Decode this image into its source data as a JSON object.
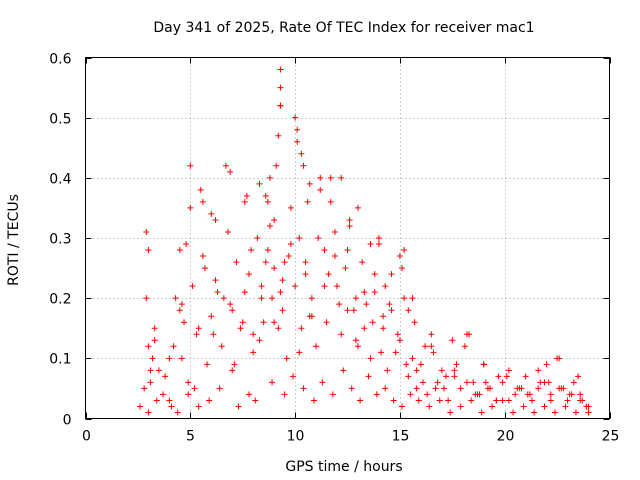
{
  "chart_data": {
    "type": "scatter",
    "title": "Day 341 of 2025, Rate Of TEC Index for receiver mac1",
    "xlabel": "GPS time / hours",
    "ylabel": "ROTI / TECUs",
    "xlim": [
      0,
      25
    ],
    "ylim": [
      0,
      0.6
    ],
    "xticks": [
      0,
      5,
      10,
      15,
      20,
      25
    ],
    "yticks": [
      0,
      0.1,
      0.2,
      0.3,
      0.4,
      0.5,
      0.6
    ],
    "ytick_labels": [
      "0",
      "0.1",
      "0.2",
      "0.3",
      "0.4",
      "0.5",
      "0.6"
    ],
    "grid": true,
    "marker": "+",
    "color": "#ff0000",
    "series": [
      {
        "x": [
          2.6,
          2.8,
          3.0,
          3.0,
          3.1,
          3.3,
          3.5,
          3.7,
          4.0,
          4.3,
          4.5,
          4.6,
          4.8,
          4.9,
          5.0,
          5.1,
          5.3,
          5.5,
          5.6,
          5.8,
          6.0,
          6.2,
          6.3,
          6.5,
          6.7,
          6.8,
          6.9,
          7.0,
          7.2,
          7.4,
          7.6,
          7.8,
          8.0,
          8.2,
          8.4,
          8.5,
          8.6,
          8.7,
          8.8,
          8.9,
          9.0,
          9.0,
          9.1,
          9.2,
          9.3,
          9.4,
          9.5,
          9.6,
          9.8,
          10.0,
          10.1,
          10.2,
          10.3,
          10.4,
          10.5,
          10.6,
          10.8,
          11.0,
          11.2,
          11.4,
          11.5,
          11.7,
          11.9,
          12.0,
          12.2,
          12.4,
          12.6,
          12.8,
          13.0,
          13.2,
          13.4,
          13.6,
          13.8,
          14.0,
          14.2,
          14.4,
          14.6,
          14.8,
          15.0,
          15.2,
          15.4,
          15.6,
          15.8,
          16.0,
          16.3,
          16.5,
          16.8,
          17.0,
          17.3,
          17.6,
          17.9,
          18.2,
          18.5,
          18.8,
          19.0,
          19.3,
          19.6,
          19.9,
          20.2,
          20.5,
          20.8,
          21.0,
          21.3,
          21.6,
          21.9,
          22.2,
          22.5,
          22.8,
          23.0,
          23.3,
          23.6,
          23.9,
          24.0,
          2.9,
          3.2,
          3.8,
          4.2,
          4.7,
          5.2,
          5.7,
          6.1,
          6.6,
          7.1,
          7.5,
          7.9,
          8.3,
          8.8,
          9.3,
          9.7,
          10.2,
          10.7,
          11.1,
          11.6,
          12.1,
          12.5,
          12.9,
          13.3,
          13.7,
          14.1,
          14.5,
          14.9,
          15.3,
          15.7,
          16.1,
          16.6,
          17.1,
          17.6,
          18.1,
          18.6,
          19.1,
          19.6,
          20.1,
          20.6,
          21.1,
          21.6,
          22.1,
          22.6,
          23.1,
          23.6,
          2.9,
          4.5,
          5.0,
          5.6,
          6.0,
          6.9,
          7.7,
          8.3,
          8.7,
          9.2,
          9.3,
          9.3,
          9.3,
          10.0,
          10.1,
          10.3,
          10.7,
          11.2,
          11.7,
          12.2,
          12.6,
          13.0,
          13.6,
          14.0,
          14.3,
          15.1,
          15.2,
          15.6,
          16.5,
          17.5,
          18.3,
          19.0,
          22.0,
          22.6,
          23.5,
          3.0,
          3.4,
          4.1,
          4.4,
          4.9,
          5.4,
          5.9,
          6.4,
          7.3,
          7.8,
          8.1,
          8.9,
          9.5,
          9.9,
          10.4,
          10.9,
          11.3,
          11.8,
          12.3,
          12.7,
          13.1,
          13.5,
          13.9,
          14.3,
          14.7,
          15.1,
          15.5,
          15.9,
          16.4,
          16.9,
          17.4,
          17.9,
          18.4,
          18.9,
          19.4,
          19.9,
          20.4,
          20.9,
          21.4,
          21.9,
          22.4,
          22.9,
          23.4,
          23.9,
          3.1,
          3.3,
          4.0,
          4.6,
          5.4,
          6.2,
          7.0,
          7.6,
          8.0,
          8.4,
          8.6,
          9.0,
          9.4,
          9.8,
          10.5,
          10.8,
          11.4,
          11.9,
          12.5,
          12.9,
          13.3,
          13.8,
          14.2,
          14.6,
          15.0,
          15.4,
          15.8,
          16.2,
          16.7,
          17.2,
          17.7,
          18.2,
          18.7,
          19.2,
          19.7,
          20.2,
          20.7,
          21.2,
          21.7,
          22.2,
          22.7,
          23.2,
          23.7,
          24.0
        ],
        "y": [
          0.02,
          0.05,
          0.28,
          0.12,
          0.06,
          0.15,
          0.08,
          0.04,
          0.03,
          0.2,
          0.18,
          0.1,
          0.29,
          0.06,
          0.35,
          0.22,
          0.14,
          0.38,
          0.27,
          0.09,
          0.17,
          0.33,
          0.21,
          0.12,
          0.42,
          0.31,
          0.19,
          0.08,
          0.26,
          0.15,
          0.36,
          0.24,
          0.11,
          0.3,
          0.22,
          0.16,
          0.37,
          0.28,
          0.4,
          0.2,
          0.33,
          0.25,
          0.42,
          0.15,
          0.52,
          0.18,
          0.26,
          0.1,
          0.35,
          0.22,
          0.48,
          0.3,
          0.15,
          0.42,
          0.26,
          0.36,
          0.2,
          0.12,
          0.38,
          0.28,
          0.16,
          0.4,
          0.31,
          0.22,
          0.14,
          0.25,
          0.33,
          0.18,
          0.12,
          0.26,
          0.19,
          0.1,
          0.24,
          0.3,
          0.15,
          0.08,
          0.18,
          0.11,
          0.27,
          0.2,
          0.07,
          0.1,
          0.05,
          0.09,
          0.04,
          0.12,
          0.06,
          0.08,
          0.03,
          0.07,
          0.05,
          0.14,
          0.06,
          0.04,
          0.09,
          0.05,
          0.03,
          0.06,
          0.08,
          0.04,
          0.05,
          0.07,
          0.03,
          0.05,
          0.06,
          0.04,
          0.1,
          0.05,
          0.03,
          0.06,
          0.04,
          0.02,
          0.01,
          0.2,
          0.1,
          0.07,
          0.12,
          0.16,
          0.05,
          0.25,
          0.14,
          0.2,
          0.09,
          0.16,
          0.28,
          0.13,
          0.32,
          0.21,
          0.27,
          0.11,
          0.17,
          0.3,
          0.24,
          0.19,
          0.28,
          0.13,
          0.21,
          0.16,
          0.11,
          0.19,
          0.14,
          0.09,
          0.16,
          0.06,
          0.11,
          0.05,
          0.08,
          0.12,
          0.04,
          0.06,
          0.03,
          0.07,
          0.05,
          0.04,
          0.08,
          0.06,
          0.05,
          0.04,
          0.03,
          0.31,
          0.28,
          0.42,
          0.36,
          0.34,
          0.41,
          0.37,
          0.39,
          0.36,
          0.47,
          0.55,
          0.58,
          0.52,
          0.5,
          0.46,
          0.44,
          0.39,
          0.4,
          0.36,
          0.4,
          0.32,
          0.35,
          0.29,
          0.29,
          0.22,
          0.25,
          0.28,
          0.2,
          0.14,
          0.13,
          0.14,
          0.09,
          0.09,
          0.1,
          0.07,
          0.01,
          0.03,
          0.02,
          0.01,
          0.04,
          0.02,
          0.03,
          0.05,
          0.02,
          0.04,
          0.03,
          0.06,
          0.04,
          0.07,
          0.05,
          0.03,
          0.06,
          0.04,
          0.08,
          0.05,
          0.03,
          0.07,
          0.04,
          0.05,
          0.03,
          0.02,
          0.04,
          0.03,
          0.02,
          0.03,
          0.01,
          0.02,
          0.03,
          0.01,
          0.02,
          0.03,
          0.01,
          0.02,
          0.01,
          0.02,
          0.01,
          0.02,
          0.01,
          0.02,
          0.08,
          0.13,
          0.1,
          0.19,
          0.15,
          0.23,
          0.18,
          0.21,
          0.14,
          0.2,
          0.26,
          0.16,
          0.23,
          0.29,
          0.24,
          0.17,
          0.22,
          0.27,
          0.18,
          0.2,
          0.15,
          0.21,
          0.17,
          0.24,
          0.13,
          0.18,
          0.08,
          0.12,
          0.05,
          0.07,
          0.09,
          0.06,
          0.04,
          0.05,
          0.07,
          0.03,
          0.05,
          0.04,
          0.06,
          0.03,
          0.05,
          0.04,
          0.03,
          0.02
        ]
      }
    ]
  }
}
